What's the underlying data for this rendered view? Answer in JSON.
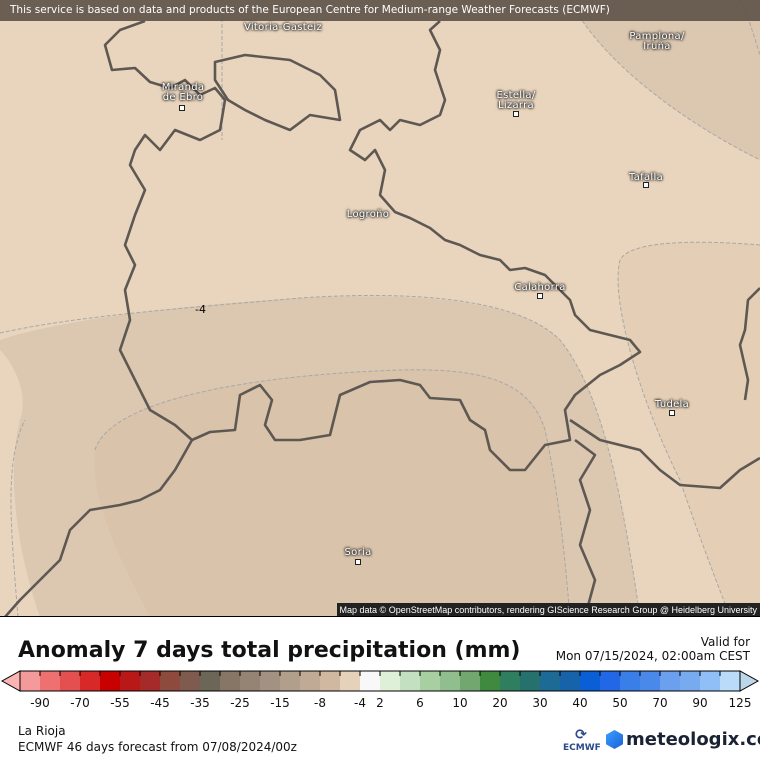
{
  "banner": "This service is based on data and products of the European Centre for Medium-range Weather Forecasts (ECMWF)",
  "attribution": "Map data © OpenStreetMap contributors, rendering GIScience Research Group @ Heidelberg University",
  "cities": {
    "vitoria": "Vitoria-Gasteiz",
    "pamplona1": "Pamplona/",
    "pamplona2": "Iruña",
    "miranda1": "Miranda",
    "miranda2": "de Ebro",
    "estella1": "Estella/",
    "estella2": "Lizarra",
    "tafalla": "Tafalla",
    "logrono": "Logroño",
    "calahorra": "Calahorra",
    "tudela": "Tudela",
    "soria": "Soria"
  },
  "contour_label": "-4",
  "title": "Anomaly 7 days total precipitation (mm)",
  "valid_label": "Valid for",
  "valid_date": "Mon 07/15/2024, 02:00am CEST",
  "colorbar": {
    "labels": [
      "-90",
      "-70",
      "-55",
      "-45",
      "-35",
      "-25",
      "-15",
      "-8",
      "-4",
      "2",
      "6",
      "10",
      "20",
      "30",
      "40",
      "50",
      "70",
      "90",
      "125"
    ],
    "low_arrow": "#fbb4b4",
    "high_arrow": "#bcd6ea",
    "colors": [
      "#f59a9a",
      "#ee7070",
      "#e45050",
      "#d92828",
      "#c80000",
      "#b81818",
      "#a52a2a",
      "#8f4a3e",
      "#7f5a4e",
      "#6b6658",
      "#877565",
      "#958373",
      "#a39282",
      "#b19f8c",
      "#c0aa95",
      "#d0b8a0",
      "#e6d2ba",
      "#f8f8f8",
      "#dff0d8",
      "#c3e0c0",
      "#a8cfa0",
      "#90be8c",
      "#72a870",
      "#408a40",
      "#2f7e60",
      "#26706e",
      "#1e6a96",
      "#1663aa",
      "#0a5ed6",
      "#2268e6",
      "#3a7ee8",
      "#4a88ea",
      "#6aa0ee",
      "#78aaf0",
      "#90bef6",
      "#b8dcfa"
    ]
  },
  "region": "La Rioja",
  "forecast": "ECMWF 46 days forecast from  07/08/2024/00z",
  "logos": {
    "ecmwf": "ECMWF",
    "meteologix": "meteologix.com"
  }
}
